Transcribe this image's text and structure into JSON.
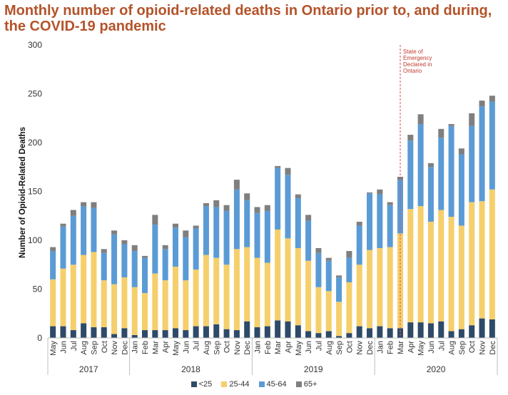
{
  "title": "Monthly number of opioid-related deaths in Ontario prior to, and during, the COVID-19 pandemic",
  "chart_data": {
    "type": "bar",
    "stacked": true,
    "title": "Monthly number of opioid-related deaths in Ontario prior to, and during, the COVID-19 pandemic",
    "xlabel": "",
    "ylabel": "Number of Opioid-Related Deaths",
    "ylim": [
      0,
      300
    ],
    "yticks": [
      0,
      50,
      100,
      150,
      200,
      250,
      300
    ],
    "grid": false,
    "legend_position": "bottom",
    "categories": [
      "May",
      "Jun",
      "Jul",
      "Aug",
      "Sep",
      "Oct",
      "Nov",
      "Dec",
      "Jan",
      "Feb",
      "Mar",
      "Apr",
      "May",
      "Jun",
      "Jul",
      "Aug",
      "Sep",
      "Oct",
      "Nov",
      "Dec",
      "Jan",
      "Feb",
      "Mar",
      "Apr",
      "May",
      "Jun",
      "Jul",
      "Aug",
      "Sep",
      "Oct",
      "Nov",
      "Dec",
      "Jan",
      "Feb",
      "Mar",
      "Apr",
      "May",
      "Jun",
      "Jul",
      "Aug",
      "Sep",
      "Oct",
      "Nov",
      "Dec"
    ],
    "year_groups": [
      {
        "label": "2017",
        "start": 0,
        "end": 7
      },
      {
        "label": "2018",
        "start": 8,
        "end": 19
      },
      {
        "label": "2019",
        "start": 20,
        "end": 31
      },
      {
        "label": "2020",
        "start": 32,
        "end": 43
      }
    ],
    "series": [
      {
        "name": "<25",
        "color": "#2e4a69",
        "values": [
          12,
          12,
          8,
          15,
          11,
          11,
          4,
          10,
          3,
          8,
          8,
          8,
          10,
          8,
          12,
          12,
          14,
          9,
          8,
          17,
          11,
          12,
          18,
          17,
          13,
          7,
          5,
          7,
          2,
          5,
          12,
          10,
          12,
          10,
          10,
          16,
          16,
          15,
          17,
          7,
          9,
          13,
          20,
          19
        ]
      },
      {
        "name": "25-44",
        "color": "#f5cf6b",
        "values": [
          48,
          59,
          67,
          70,
          77,
          48,
          51,
          52,
          49,
          38,
          58,
          51,
          63,
          51,
          58,
          73,
          68,
          66,
          83,
          76,
          71,
          65,
          93,
          85,
          79,
          72,
          47,
          41,
          35,
          52,
          63,
          80,
          80,
          83,
          97,
          116,
          119,
          104,
          114,
          117,
          106,
          126,
          120,
          133
        ]
      },
      {
        "name": "45-64",
        "color": "#5b9bd5",
        "values": [
          29,
          43,
          50,
          50,
          45,
          28,
          51,
          34,
          37,
          36,
          50,
          32,
          40,
          44,
          42,
          50,
          52,
          55,
          61,
          48,
          46,
          53,
          63,
          65,
          51,
          41,
          35,
          31,
          25,
          25,
          40,
          58,
          55,
          43,
          55,
          70,
          84,
          56,
          74,
          93,
          73,
          78,
          97,
          90
        ]
      },
      {
        "name": "65+",
        "color": "#7f7f7f",
        "values": [
          4,
          3,
          6,
          4,
          6,
          4,
          4,
          4,
          6,
          2,
          10,
          4,
          4,
          7,
          3,
          3,
          7,
          6,
          10,
          7,
          6,
          6,
          2,
          7,
          4,
          6,
          5,
          3,
          2,
          7,
          4,
          1,
          5,
          3,
          3,
          6,
          10,
          4,
          9,
          2,
          6,
          13,
          6,
          6
        ]
      }
    ],
    "annotations": [
      {
        "text_lines": [
          "State of",
          "Emergency",
          "Declared in",
          "Ontario"
        ],
        "at_category_index": 34,
        "style": "dashed vertical line"
      }
    ]
  },
  "legend_items": [
    "<25",
    "25-44",
    "45-64",
    "65+"
  ]
}
